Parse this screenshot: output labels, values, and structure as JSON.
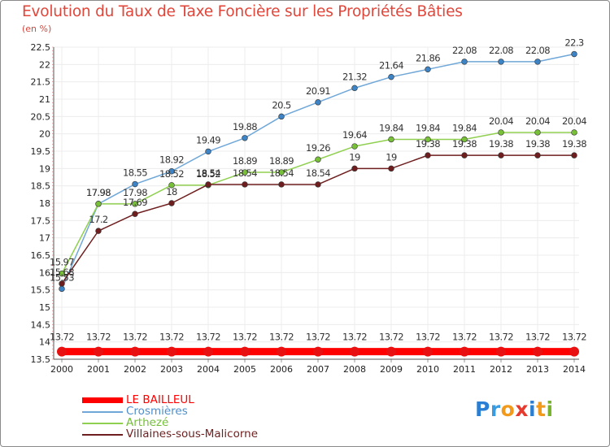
{
  "title": "Evolution du Taux de Taxe Foncière sur les Propriétés Bâties",
  "subtitle": "(en %)",
  "logo": {
    "letters": [
      "P",
      "r",
      "o",
      "x",
      "i",
      "t",
      "i"
    ],
    "colors": [
      "#2a7fd4",
      "#3b9be0",
      "#f29a1c",
      "#e63a2e",
      "#2a7fd4",
      "#f29a1c",
      "#7ab32e"
    ]
  },
  "colors": {
    "title": "#e0463a",
    "frame": "#8a8a8a",
    "grid": "#ebebeb"
  },
  "legend": [
    {
      "label": "LE BAILLEUL",
      "color": "#ff0000"
    },
    {
      "label": "Crosmières",
      "color": "#6fa7d8"
    },
    {
      "label": "Arthezé",
      "color": "#90d050"
    },
    {
      "label": "Villaines-sous-Malicorne",
      "color": "#6e1e1e"
    }
  ],
  "chart_data": {
    "type": "line",
    "title": "Evolution du Taux de Taxe Foncière sur les Propriétés Bâties",
    "ylabel": "(en %)",
    "xlabel": "",
    "ylim": [
      13.5,
      22.5
    ],
    "y_ticks": [
      "13.5",
      "14",
      "14.5",
      "15",
      "15.5",
      "16",
      "16.5",
      "17",
      "17.5",
      "18",
      "18.5",
      "19",
      "19.5",
      "20",
      "20.5",
      "21",
      "21.5",
      "22",
      "22.5"
    ],
    "grid": true,
    "legend_position": "bottom-left",
    "x": [
      "2000",
      "2001",
      "2002",
      "2003",
      "2004",
      "2005",
      "2006",
      "2007",
      "2008",
      "2009",
      "2010",
      "2011",
      "2012",
      "2013",
      "2014"
    ],
    "series": [
      {
        "name": "LE BAILLEUL",
        "color": "#ff0000",
        "point_color": "#e81010",
        "thick": true,
        "values": [
          13.72,
          13.72,
          13.72,
          13.72,
          13.72,
          13.72,
          13.72,
          13.72,
          13.72,
          13.72,
          13.72,
          13.72,
          13.72,
          13.72,
          13.72
        ],
        "labels": [
          "13.72",
          "13.72",
          "13.72",
          "13.72",
          "13.72",
          "13.72",
          "13.72",
          "13.72",
          "13.72",
          "13.72",
          "13.72",
          "13.72",
          "13.72",
          "13.72",
          "13.72"
        ]
      },
      {
        "name": "Crosmières",
        "color": "#6fa7d8",
        "point_color": "#3d84c6",
        "thick": false,
        "values": [
          15.53,
          17.98,
          18.55,
          18.92,
          19.49,
          19.88,
          20.5,
          20.91,
          21.32,
          21.64,
          21.86,
          22.08,
          22.08,
          22.08,
          22.3
        ],
        "labels": [
          "15.53",
          "17.98",
          "18.55",
          "18.92",
          "19.49",
          "19.88",
          "20.5",
          "20.91",
          "21.32",
          "21.64",
          "21.86",
          "22.08",
          "22.08",
          "22.08",
          "22.3"
        ]
      },
      {
        "name": "Arthezé",
        "color": "#90d050",
        "point_color": "#78c038",
        "thick": false,
        "values": [
          15.97,
          17.98,
          17.98,
          18.52,
          18.52,
          18.89,
          18.89,
          19.26,
          19.64,
          19.84,
          19.84,
          19.84,
          20.04,
          20.04,
          20.04
        ],
        "labels": [
          "15.97",
          "17.98",
          "17.98",
          "18.52",
          "18.52",
          "18.89",
          "18.89",
          "19.26",
          "19.64",
          "19.84",
          "19.84",
          "19.84",
          "20.04",
          "20.04",
          "20.04"
        ]
      },
      {
        "name": "Villaines-sous-Malicorne",
        "color": "#6e1e1e",
        "point_color": "#6e1e1e",
        "thick": false,
        "values": [
          15.68,
          17.2,
          17.69,
          18.0,
          18.54,
          18.54,
          18.54,
          18.54,
          19.0,
          19.0,
          19.38,
          19.38,
          19.38,
          19.38,
          19.38
        ],
        "labels": [
          "15.68",
          "17.2",
          "17.69",
          "18",
          "18.54",
          "18.54",
          "18.54",
          "18.54",
          "19",
          "19",
          "19.38",
          "19.38",
          "19.38",
          "19.38",
          "19.38"
        ]
      }
    ]
  }
}
